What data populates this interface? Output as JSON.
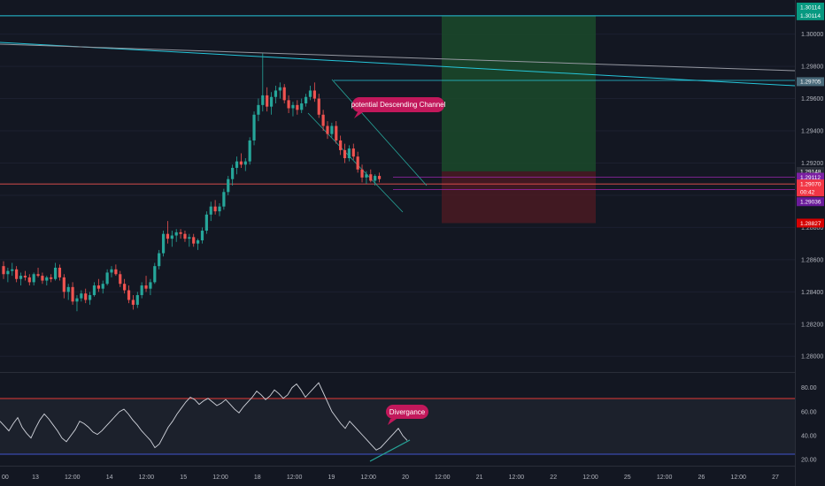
{
  "chart_data": [
    {
      "type": "candlestick",
      "title": "",
      "price_axis_ticks": [
        1.30114,
        1.3,
        1.298,
        1.29705,
        1.296,
        1.294,
        1.292,
        1.29148,
        1.29112,
        1.2907,
        1.28827,
        1.288,
        1.286,
        1.284,
        1.282,
        1.28
      ],
      "price_axis_tick_labels": [
        "1.30114",
        "1.30000",
        "1.29800",
        "1.29705",
        "1.29600",
        "1.29400",
        "1.29200",
        "1.29148",
        "1.29112",
        "1.29070",
        "1.28827",
        "1.28800",
        "1.28600",
        "1.28400",
        "1.28200",
        "1.28000"
      ],
      "price_range": [
        1.2793,
        1.3019
      ],
      "price_badges": [
        {
          "label": "1.30114",
          "value": 1.30114,
          "color": "#089981"
        },
        {
          "label": "1.29705",
          "value": 1.29705,
          "color": "#4a6a7a"
        },
        {
          "label": "1.29148",
          "value": 1.29148,
          "color": "#2a2e39"
        },
        {
          "label": "1.29112",
          "value": 1.29112,
          "color": "#7b1fa2"
        },
        {
          "label": "1.29070",
          "value": 1.2907,
          "color": "#f23645"
        },
        {
          "label": "00:42",
          "value": 1.2902,
          "color": "#f23645"
        },
        {
          "label": "1.29036",
          "value": 1.2896,
          "color": "#6a1b9a"
        },
        {
          "label": "1.28827",
          "value": 1.28827,
          "color": "#d50000"
        }
      ],
      "top_edge_badge": "1.30114",
      "time_axis_labels": [
        "00",
        "13",
        "12:00",
        "14",
        "12:00",
        "15",
        "12:00",
        "18",
        "12:00",
        "19",
        "12:00",
        "20",
        "12:00",
        "21",
        "12:00",
        "22",
        "12:00",
        "25",
        "12:00",
        "26",
        "12:00",
        "27"
      ],
      "annotation": "potential Descending Channel",
      "position_box": {
        "entry": 1.29148,
        "target": 1.30114,
        "stop": 1.28827
      },
      "colors": {
        "up": "#26a69a",
        "down": "#ef5350",
        "target_zone": "#1b4a2a",
        "stop_zone": "#4a1a22",
        "annotation": "#c2185b"
      },
      "series": [
        {
          "name": "",
          "ohlc": [
            [
              1.2856,
              1.2859,
              1.2848,
              1.2851
            ],
            [
              1.2851,
              1.2855,
              1.2846,
              1.2853
            ],
            [
              1.2853,
              1.2858,
              1.285,
              1.2854
            ],
            [
              1.2854,
              1.2856,
              1.2846,
              1.2848
            ],
            [
              1.2848,
              1.2852,
              1.2844,
              1.285
            ],
            [
              1.285,
              1.2853,
              1.2847,
              1.2849
            ],
            [
              1.2849,
              1.2851,
              1.2844,
              1.2846
            ],
            [
              1.2846,
              1.2852,
              1.2844,
              1.2851
            ],
            [
              1.2851,
              1.2855,
              1.2849,
              1.285
            ],
            [
              1.285,
              1.2852,
              1.2845,
              1.2847
            ],
            [
              1.2847,
              1.285,
              1.2844,
              1.2849
            ],
            [
              1.2849,
              1.2851,
              1.2846,
              1.2848
            ],
            [
              1.2848,
              1.2858,
              1.2847,
              1.2855
            ],
            [
              1.2855,
              1.2857,
              1.2847,
              1.2849
            ],
            [
              1.2849,
              1.2851,
              1.2836,
              1.284
            ],
            [
              1.284,
              1.2845,
              1.2835,
              1.2843
            ],
            [
              1.2843,
              1.2846,
              1.2832,
              1.2834
            ],
            [
              1.2834,
              1.2838,
              1.2828,
              1.2836
            ],
            [
              1.2836,
              1.2841,
              1.2834,
              1.2839
            ],
            [
              1.2839,
              1.2842,
              1.2833,
              1.2835
            ],
            [
              1.2835,
              1.284,
              1.2832,
              1.2838
            ],
            [
              1.2838,
              1.2846,
              1.2837,
              1.2844
            ],
            [
              1.2844,
              1.2848,
              1.284,
              1.2842
            ],
            [
              1.2842,
              1.2847,
              1.2839,
              1.2845
            ],
            [
              1.2845,
              1.2854,
              1.2844,
              1.2852
            ],
            [
              1.2852,
              1.2856,
              1.2849,
              1.2854
            ],
            [
              1.2854,
              1.2857,
              1.285,
              1.2851
            ],
            [
              1.2851,
              1.2853,
              1.2843,
              1.2845
            ],
            [
              1.2845,
              1.2848,
              1.2839,
              1.2841
            ],
            [
              1.2841,
              1.2844,
              1.2833,
              1.2835
            ],
            [
              1.2835,
              1.2838,
              1.2829,
              1.2832
            ],
            [
              1.2832,
              1.284,
              1.283,
              1.2838
            ],
            [
              1.2838,
              1.2846,
              1.2836,
              1.2844
            ],
            [
              1.2844,
              1.285,
              1.284,
              1.2842
            ],
            [
              1.2842,
              1.2848,
              1.2838,
              1.2846
            ],
            [
              1.2846,
              1.2858,
              1.2845,
              1.2856
            ],
            [
              1.2856,
              1.2866,
              1.2854,
              1.2864
            ],
            [
              1.2864,
              1.2878,
              1.2862,
              1.2876
            ],
            [
              1.2876,
              1.2884,
              1.287,
              1.2873
            ],
            [
              1.2873,
              1.2878,
              1.2868,
              1.2875
            ],
            [
              1.2875,
              1.2879,
              1.2871,
              1.2877
            ],
            [
              1.2877,
              1.2879,
              1.2873,
              1.2876
            ],
            [
              1.2876,
              1.2878,
              1.2871,
              1.2873
            ],
            [
              1.2873,
              1.2876,
              1.2868,
              1.2874
            ],
            [
              1.2874,
              1.2876,
              1.2868,
              1.287
            ],
            [
              1.287,
              1.2873,
              1.2866,
              1.2872
            ],
            [
              1.2872,
              1.288,
              1.287,
              1.2878
            ],
            [
              1.2878,
              1.289,
              1.2876,
              1.2888
            ],
            [
              1.2888,
              1.2896,
              1.2884,
              1.2893
            ],
            [
              1.2893,
              1.2897,
              1.2888,
              1.289
            ],
            [
              1.289,
              1.2895,
              1.2887,
              1.2893
            ],
            [
              1.2893,
              1.2904,
              1.2891,
              1.2902
            ],
            [
              1.2902,
              1.2912,
              1.29,
              1.291
            ],
            [
              1.291,
              1.2919,
              1.2906,
              1.2917
            ],
            [
              1.2917,
              1.2924,
              1.2913,
              1.2921
            ],
            [
              1.2921,
              1.2926,
              1.2917,
              1.2919
            ],
            [
              1.2919,
              1.2923,
              1.2915,
              1.2921
            ],
            [
              1.2921,
              1.2936,
              1.2919,
              1.2934
            ],
            [
              1.2934,
              1.2952,
              1.2931,
              1.295
            ],
            [
              1.295,
              1.296,
              1.2946,
              1.2956
            ],
            [
              1.2956,
              1.2988,
              1.2952,
              1.2962
            ],
            [
              1.2962,
              1.2967,
              1.2952,
              1.2955
            ],
            [
              1.2955,
              1.2964,
              1.295,
              1.2961
            ],
            [
              1.2961,
              1.2968,
              1.2957,
              1.2965
            ],
            [
              1.2965,
              1.297,
              1.296,
              1.2967
            ],
            [
              1.2967,
              1.2969,
              1.2957,
              1.2959
            ],
            [
              1.2959,
              1.2962,
              1.2951,
              1.2954
            ],
            [
              1.2954,
              1.2958,
              1.2949,
              1.2956
            ],
            [
              1.2956,
              1.2959,
              1.295,
              1.2953
            ],
            [
              1.2953,
              1.296,
              1.2951,
              1.2957
            ],
            [
              1.2957,
              1.2963,
              1.2955,
              1.2961
            ],
            [
              1.2961,
              1.2968,
              1.2959,
              1.2965
            ],
            [
              1.2965,
              1.297,
              1.2958,
              1.296
            ],
            [
              1.296,
              1.2963,
              1.2948,
              1.295
            ],
            [
              1.295,
              1.2953,
              1.294,
              1.2943
            ],
            [
              1.2943,
              1.2946,
              1.2935,
              1.2938
            ],
            [
              1.2938,
              1.2945,
              1.2936,
              1.2943
            ],
            [
              1.2943,
              1.2946,
              1.2932,
              1.2934
            ],
            [
              1.2934,
              1.2937,
              1.2925,
              1.2928
            ],
            [
              1.2928,
              1.2932,
              1.292,
              1.2923
            ],
            [
              1.2923,
              1.2931,
              1.2921,
              1.2929
            ],
            [
              1.2929,
              1.2932,
              1.2922,
              1.2924
            ],
            [
              1.2924,
              1.2927,
              1.2914,
              1.2916
            ],
            [
              1.2916,
              1.2919,
              1.2908,
              1.2911
            ],
            [
              1.2911,
              1.2915,
              1.2907,
              1.2913
            ],
            [
              1.2913,
              1.2916,
              1.2908,
              1.2909
            ],
            [
              1.2909,
              1.2913,
              1.2906,
              1.2912
            ],
            [
              1.2912,
              1.2914,
              1.2908,
              1.291
            ]
          ]
        }
      ]
    },
    {
      "type": "line",
      "title": "",
      "y_tick_labels": [
        "80.00",
        "60.00",
        "40.00",
        "20.00"
      ],
      "y_ticks": [
        80,
        60,
        40,
        20
      ],
      "ylim": [
        15,
        90
      ],
      "bands": [
        75,
        25
      ],
      "annotation": "Divergance",
      "series": [
        {
          "name": "",
          "values": [
            52,
            48,
            44,
            50,
            55,
            47,
            42,
            38,
            46,
            53,
            58,
            54,
            49,
            44,
            38,
            35,
            40,
            45,
            52,
            50,
            47,
            43,
            41,
            44,
            48,
            52,
            56,
            60,
            62,
            58,
            53,
            49,
            44,
            40,
            36,
            30,
            33,
            40,
            47,
            52,
            58,
            63,
            68,
            72,
            70,
            66,
            69,
            71,
            68,
            65,
            67,
            70,
            66,
            62,
            59,
            64,
            68,
            72,
            77,
            74,
            70,
            73,
            78,
            75,
            71,
            74,
            80,
            83,
            78,
            72,
            76,
            80,
            84,
            76,
            68,
            60,
            55,
            50,
            46,
            52,
            48,
            44,
            40,
            36,
            32,
            28,
            30,
            34,
            38,
            42,
            46,
            40,
            36
          ],
          "color": "#d1d4dc"
        }
      ]
    }
  ]
}
